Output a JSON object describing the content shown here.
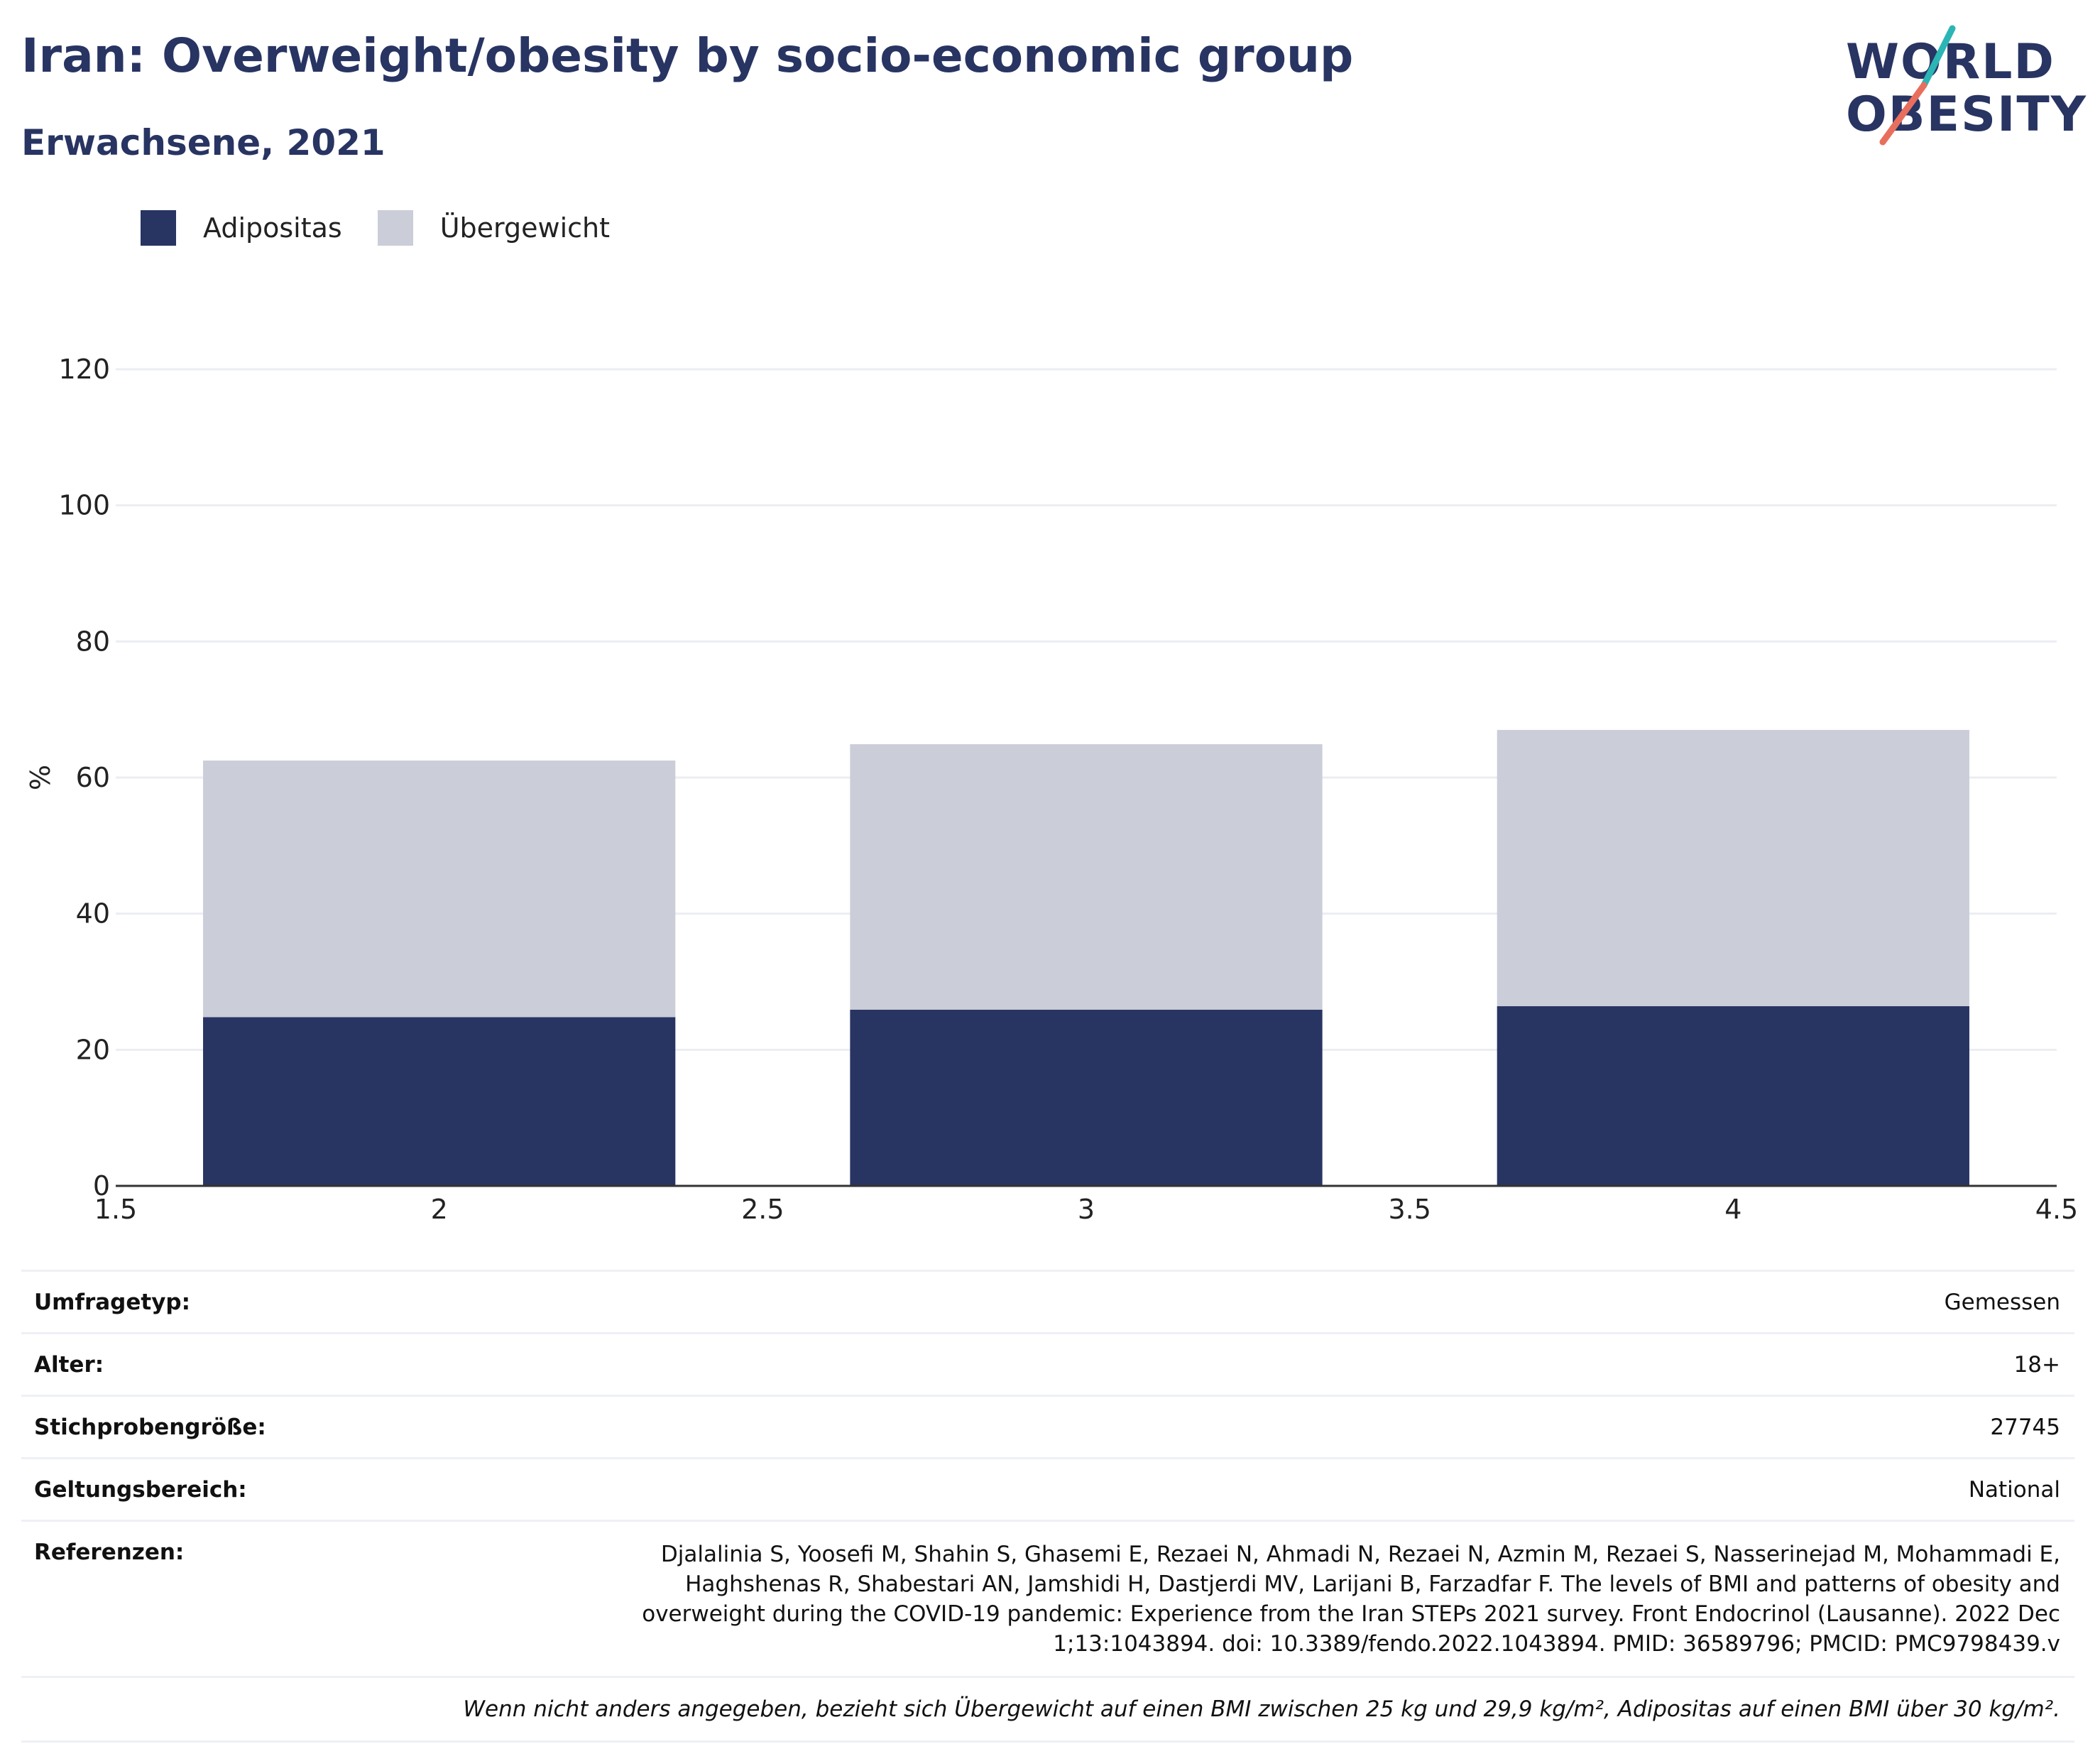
{
  "title": "Iran: Overweight/obesity by socio-economic group",
  "subtitle": "Erwachsene, 2021",
  "logo": {
    "line1": "WORLD",
    "line2": "OBESITY"
  },
  "colors": {
    "obesity": "#283462",
    "overweight": "#cbcdd8",
    "grid": "#ebedf2",
    "logo_teal": "#2bb5b5",
    "logo_coral": "#e86f5d"
  },
  "legend": [
    {
      "name": "Adipositas",
      "color": "#283462"
    },
    {
      "name": "Übergewicht",
      "color": "#cbcdd8"
    }
  ],
  "chart_data": {
    "type": "bar",
    "stacked": true,
    "x": [
      2,
      3,
      4
    ],
    "series": [
      {
        "name": "Adipositas",
        "values": [
          24.8,
          25.9,
          26.4
        ]
      },
      {
        "name": "Übergewicht",
        "values": [
          37.7,
          39.0,
          40.6
        ]
      }
    ],
    "totals": [
      62.5,
      64.9,
      67.0
    ],
    "xlim": [
      1.5,
      4.5
    ],
    "xticks": [
      1.5,
      2,
      2.5,
      3,
      3.5,
      4,
      4.5
    ],
    "xtick_labels": [
      "1.5",
      "2",
      "2.5",
      "3",
      "3.5",
      "4",
      "4.5"
    ],
    "ylim": [
      0,
      120
    ],
    "yticks": [
      0,
      20,
      40,
      60,
      80,
      100,
      120
    ],
    "ylabel": "%",
    "xlabel": "",
    "grid": true,
    "legend_position": "top-left"
  },
  "info": [
    {
      "key": "Umfragetyp:",
      "value": "Gemessen"
    },
    {
      "key": "Alter:",
      "value": "18+"
    },
    {
      "key": "Stichprobengröße:",
      "value": "27745"
    },
    {
      "key": "Geltungsbereich:",
      "value": "National"
    },
    {
      "key": "Referenzen:",
      "value": "Djalalinia S, Yoosefi M, Shahin S, Ghasemi E, Rezaei N, Ahmadi N, Rezaei N, Azmin M, Rezaei S, Nasserinejad M, Mohammadi E, Haghshenas R, Shabestari AN, Jamshidi H, Dastjerdi MV, Larijani B, Farzadfar F. The levels of BMI and patterns of obesity and overweight during the COVID-19 pandemic: Experience from the Iran STEPs 2021 survey. Front Endocrinol (Lausanne). 2022 Dec 1;13:1043894. doi: 10.3389/fendo.2022.1043894. PMID: 36589796; PMCID: PMC9798439.v"
    }
  ],
  "note": "Wenn nicht anders angegeben, bezieht sich Übergewicht auf einen BMI zwischen 25 kg und 29,9 kg/m², Adipositas auf einen BMI über 30 kg/m²."
}
